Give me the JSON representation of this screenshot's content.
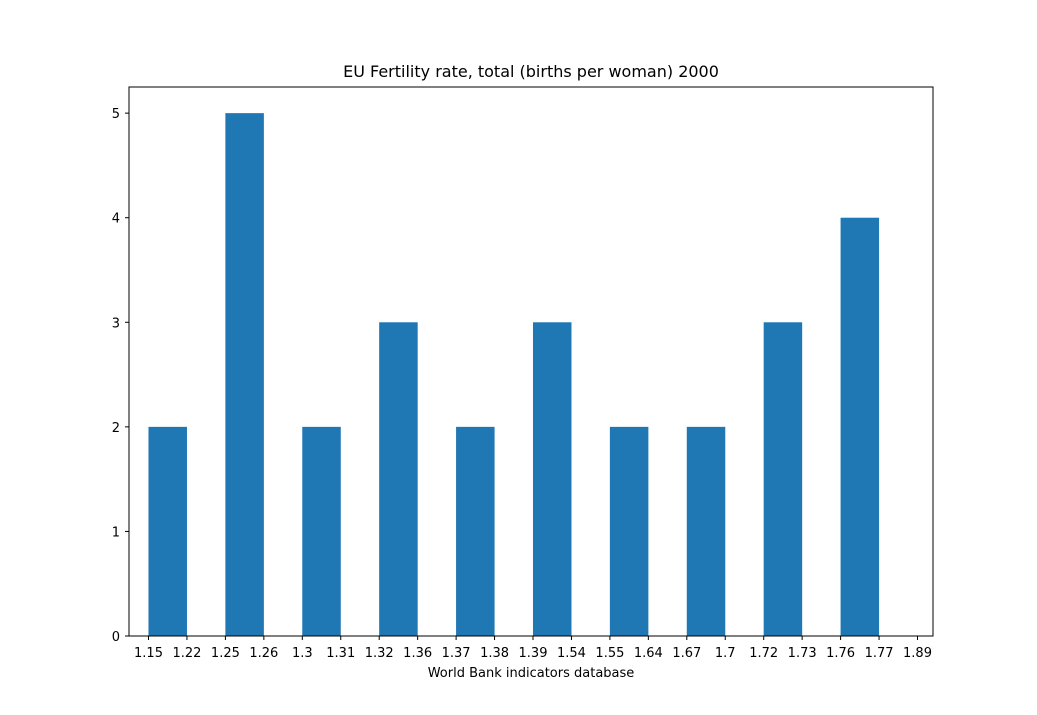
{
  "chart_data": {
    "type": "bar",
    "title": "EU Fertility rate, total (births per woman) 2000",
    "xlabel": "World Bank indicators database",
    "ylabel": "",
    "x_ticks": [
      "1.15",
      "1.22",
      "1.25",
      "1.26",
      "1.3",
      "1.31",
      "1.32",
      "1.36",
      "1.37",
      "1.38",
      "1.39",
      "1.54",
      "1.55",
      "1.64",
      "1.67",
      "1.7",
      "1.72",
      "1.73",
      "1.76",
      "1.77",
      "1.89"
    ],
    "bars": [
      {
        "label": "1.15-1.22",
        "value": 2
      },
      {
        "label": "1.25-1.26",
        "value": 5
      },
      {
        "label": "1.3-1.31",
        "value": 2
      },
      {
        "label": "1.32-1.36",
        "value": 3
      },
      {
        "label": "1.37-1.38",
        "value": 2
      },
      {
        "label": "1.39-1.54",
        "value": 3
      },
      {
        "label": "1.55-1.64",
        "value": 2
      },
      {
        "label": "1.67-1.7",
        "value": 2
      },
      {
        "label": "1.72-1.73",
        "value": 3
      },
      {
        "label": "1.76-1.77",
        "value": 4
      }
    ],
    "y_ticks": [
      "0",
      "1",
      "2",
      "3",
      "4",
      "5"
    ],
    "ylim": [
      0,
      5.25
    ],
    "grid": false,
    "bar_color": "#1f77b4"
  }
}
